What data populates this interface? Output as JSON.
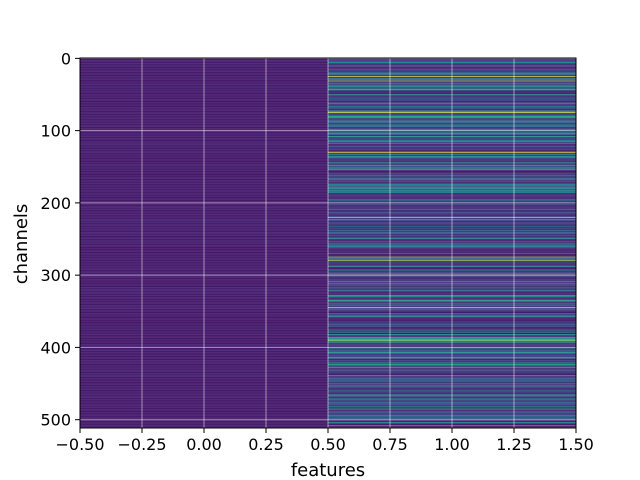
{
  "chart_data": {
    "type": "heatmap",
    "title": "",
    "xlabel": "features",
    "ylabel": "channels",
    "xlim": [
      -0.5,
      1.5
    ],
    "ylim": [
      511.5,
      -0.5
    ],
    "y_inverted": true,
    "grid": true,
    "colormap": "viridis",
    "columns": 2,
    "rows": 512,
    "x_ticks": [
      -0.5,
      -0.25,
      0.0,
      0.25,
      0.5,
      0.75,
      1.0,
      1.25,
      1.5
    ],
    "x_tick_labels": [
      "−0.50",
      "−0.25",
      "0.00",
      "0.25",
      "0.50",
      "0.75",
      "1.00",
      "1.25",
      "1.50"
    ],
    "y_ticks": [
      0,
      100,
      200,
      300,
      400,
      500
    ],
    "y_tick_labels": [
      "0",
      "100",
      "200",
      "300",
      "400",
      "500"
    ],
    "column_value_profile": [
      {
        "feature": 0,
        "typical": 0.08,
        "spread": 0.04
      },
      {
        "feature": 1,
        "typical": 0.2,
        "spread": 0.6
      }
    ],
    "bright_channels_feature_1": [
      25,
      30,
      75,
      130,
      220,
      275,
      280,
      345,
      390
    ]
  }
}
